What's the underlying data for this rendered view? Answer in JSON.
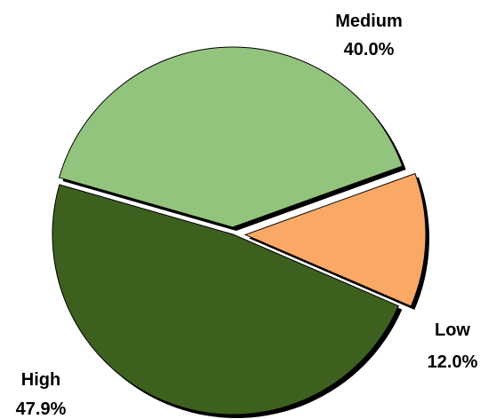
{
  "chart_data": {
    "type": "pie",
    "title": "",
    "exploded": true,
    "slices": [
      {
        "label": "Medium",
        "percent_label": "40.0%",
        "value": 40.0,
        "color": "#93c47d"
      },
      {
        "label": "Low",
        "percent_label": "12.0%",
        "value": 12.0,
        "color": "#f9a866"
      },
      {
        "label": "High",
        "percent_label": "47.9%",
        "value": 47.9,
        "color": "#3d601e"
      }
    ]
  }
}
